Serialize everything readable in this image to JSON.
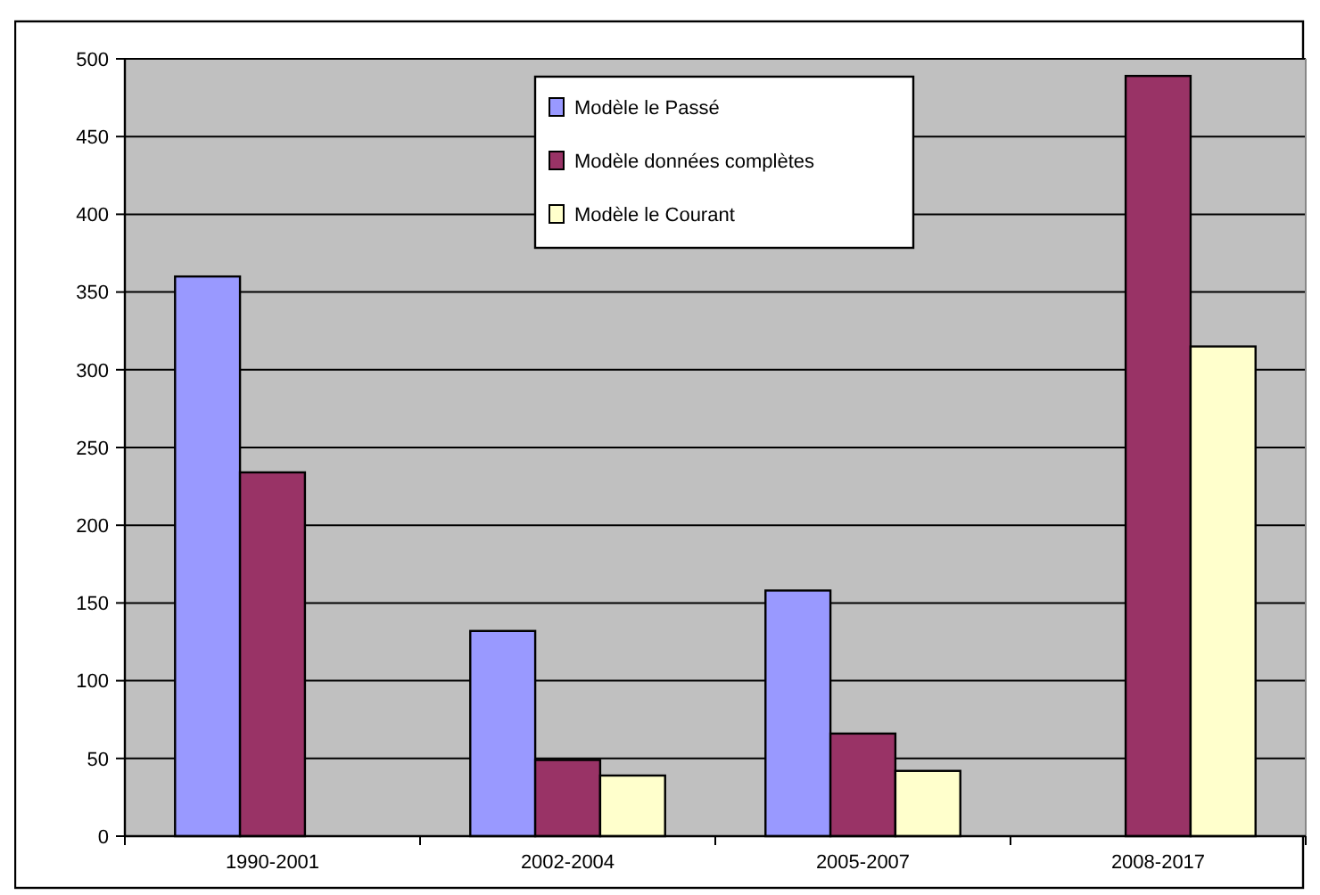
{
  "chart_data": {
    "type": "bar",
    "categories": [
      "1990-2001",
      "2002-2004",
      "2005-2007",
      "2008-2017"
    ],
    "series": [
      {
        "name": "Modèle le Passé",
        "color": "#9999ff",
        "values": [
          360,
          132,
          158,
          null
        ]
      },
      {
        "name": "Modèle données complètes",
        "color": "#993366",
        "values": [
          234,
          49,
          66,
          489
        ]
      },
      {
        "name": "Modèle le Courant",
        "color": "#ffffcc",
        "values": [
          null,
          39,
          42,
          315
        ]
      }
    ],
    "ylim": [
      0,
      500
    ],
    "yticks": [
      0,
      50,
      100,
      150,
      200,
      250,
      300,
      350,
      400,
      450,
      500
    ],
    "grid": "y",
    "legend": "top"
  }
}
